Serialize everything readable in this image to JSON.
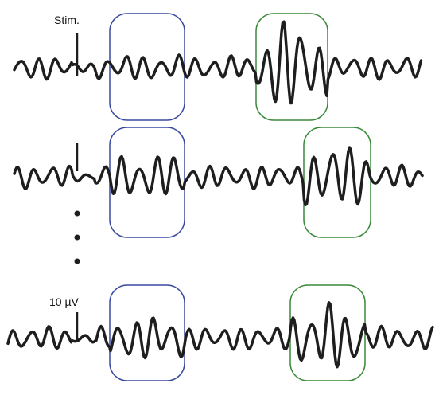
{
  "labels": {
    "stim": "Stim.",
    "scale": "10 µV"
  }
}
